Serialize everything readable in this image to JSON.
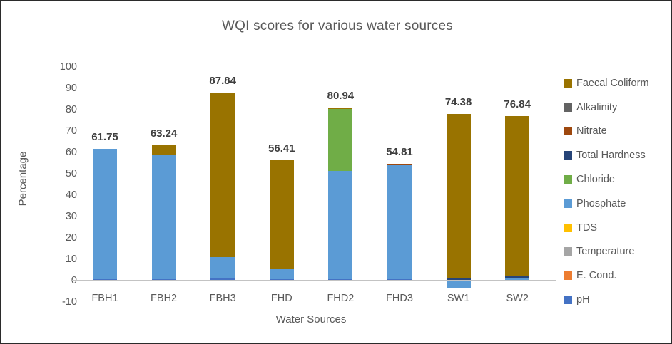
{
  "chart": {
    "title": "WQI scores for various water sources",
    "x_axis_label": "Water Sources",
    "y_axis_label": "Percentage"
  },
  "chart_data": {
    "type": "bar",
    "stacked": true,
    "title": "WQI scores for various water sources",
    "xlabel": "Water Sources",
    "ylabel": "Percentage",
    "ylim": [
      -10,
      100
    ],
    "y_ticks": [
      100,
      90,
      80,
      70,
      60,
      50,
      40,
      30,
      20,
      10,
      0,
      -10
    ],
    "grid": "off",
    "legend_position": "right",
    "categories": [
      "FBH1",
      "FBH2",
      "FBH3",
      "FHD",
      "FHD2",
      "FHD3",
      "SW1",
      "SW2"
    ],
    "totals": [
      61.75,
      63.24,
      87.84,
      56.41,
      80.94,
      54.81,
      74.38,
      76.84
    ],
    "total_labels": [
      "61.75",
      "63.24",
      "87.84",
      "56.41",
      "80.94",
      "54.81",
      "74.38",
      "76.84"
    ],
    "series": [
      {
        "name": "pH",
        "color": "#4472C4",
        "values": [
          0.75,
          0.74,
          1.2,
          0.7,
          0.7,
          0.7,
          0,
          0
        ]
      },
      {
        "name": "E. Cond.",
        "color": "#ED7D31",
        "values": [
          0,
          0,
          0,
          0,
          0,
          0,
          0,
          0
        ]
      },
      {
        "name": "Temperature",
        "color": "#A5A5A5",
        "values": [
          0,
          0,
          0,
          0,
          0,
          0,
          0,
          0
        ]
      },
      {
        "name": "TDS",
        "color": "#FFC000",
        "values": [
          0,
          0,
          0,
          0,
          0,
          0,
          0,
          0
        ]
      },
      {
        "name": "Phosphate",
        "color": "#5B9BD5",
        "values": [
          61.0,
          58.26,
          9.8,
          4.63,
          50.63,
          53.31,
          -3.5,
          1.3
        ]
      },
      {
        "name": "Chloride",
        "color": "#70AD47",
        "values": [
          0,
          0,
          0,
          0,
          29.11,
          0,
          0,
          0
        ]
      },
      {
        "name": "Total Hardness",
        "color": "#264478",
        "values": [
          0,
          0,
          0,
          0,
          0,
          0,
          1.2,
          0.7
        ]
      },
      {
        "name": "Nitrate",
        "color": "#9E480E",
        "values": [
          0,
          0,
          0,
          0,
          0,
          0.8,
          0,
          0
        ]
      },
      {
        "name": "Alkalinity",
        "color": "#636363",
        "values": [
          0,
          0,
          0,
          0,
          0,
          0,
          0,
          0
        ]
      },
      {
        "name": "Faecal Coliform",
        "color": "#997300",
        "values": [
          0,
          4.24,
          76.84,
          51.08,
          0.5,
          0,
          76.68,
          74.84
        ]
      }
    ],
    "legend_entries": [
      "Faecal Coliform",
      "Alkalinity",
      "Nitrate",
      "Total Hardness",
      "Chloride",
      "Phosphate",
      "TDS",
      "Temperature",
      "E. Cond.",
      "pH"
    ]
  }
}
